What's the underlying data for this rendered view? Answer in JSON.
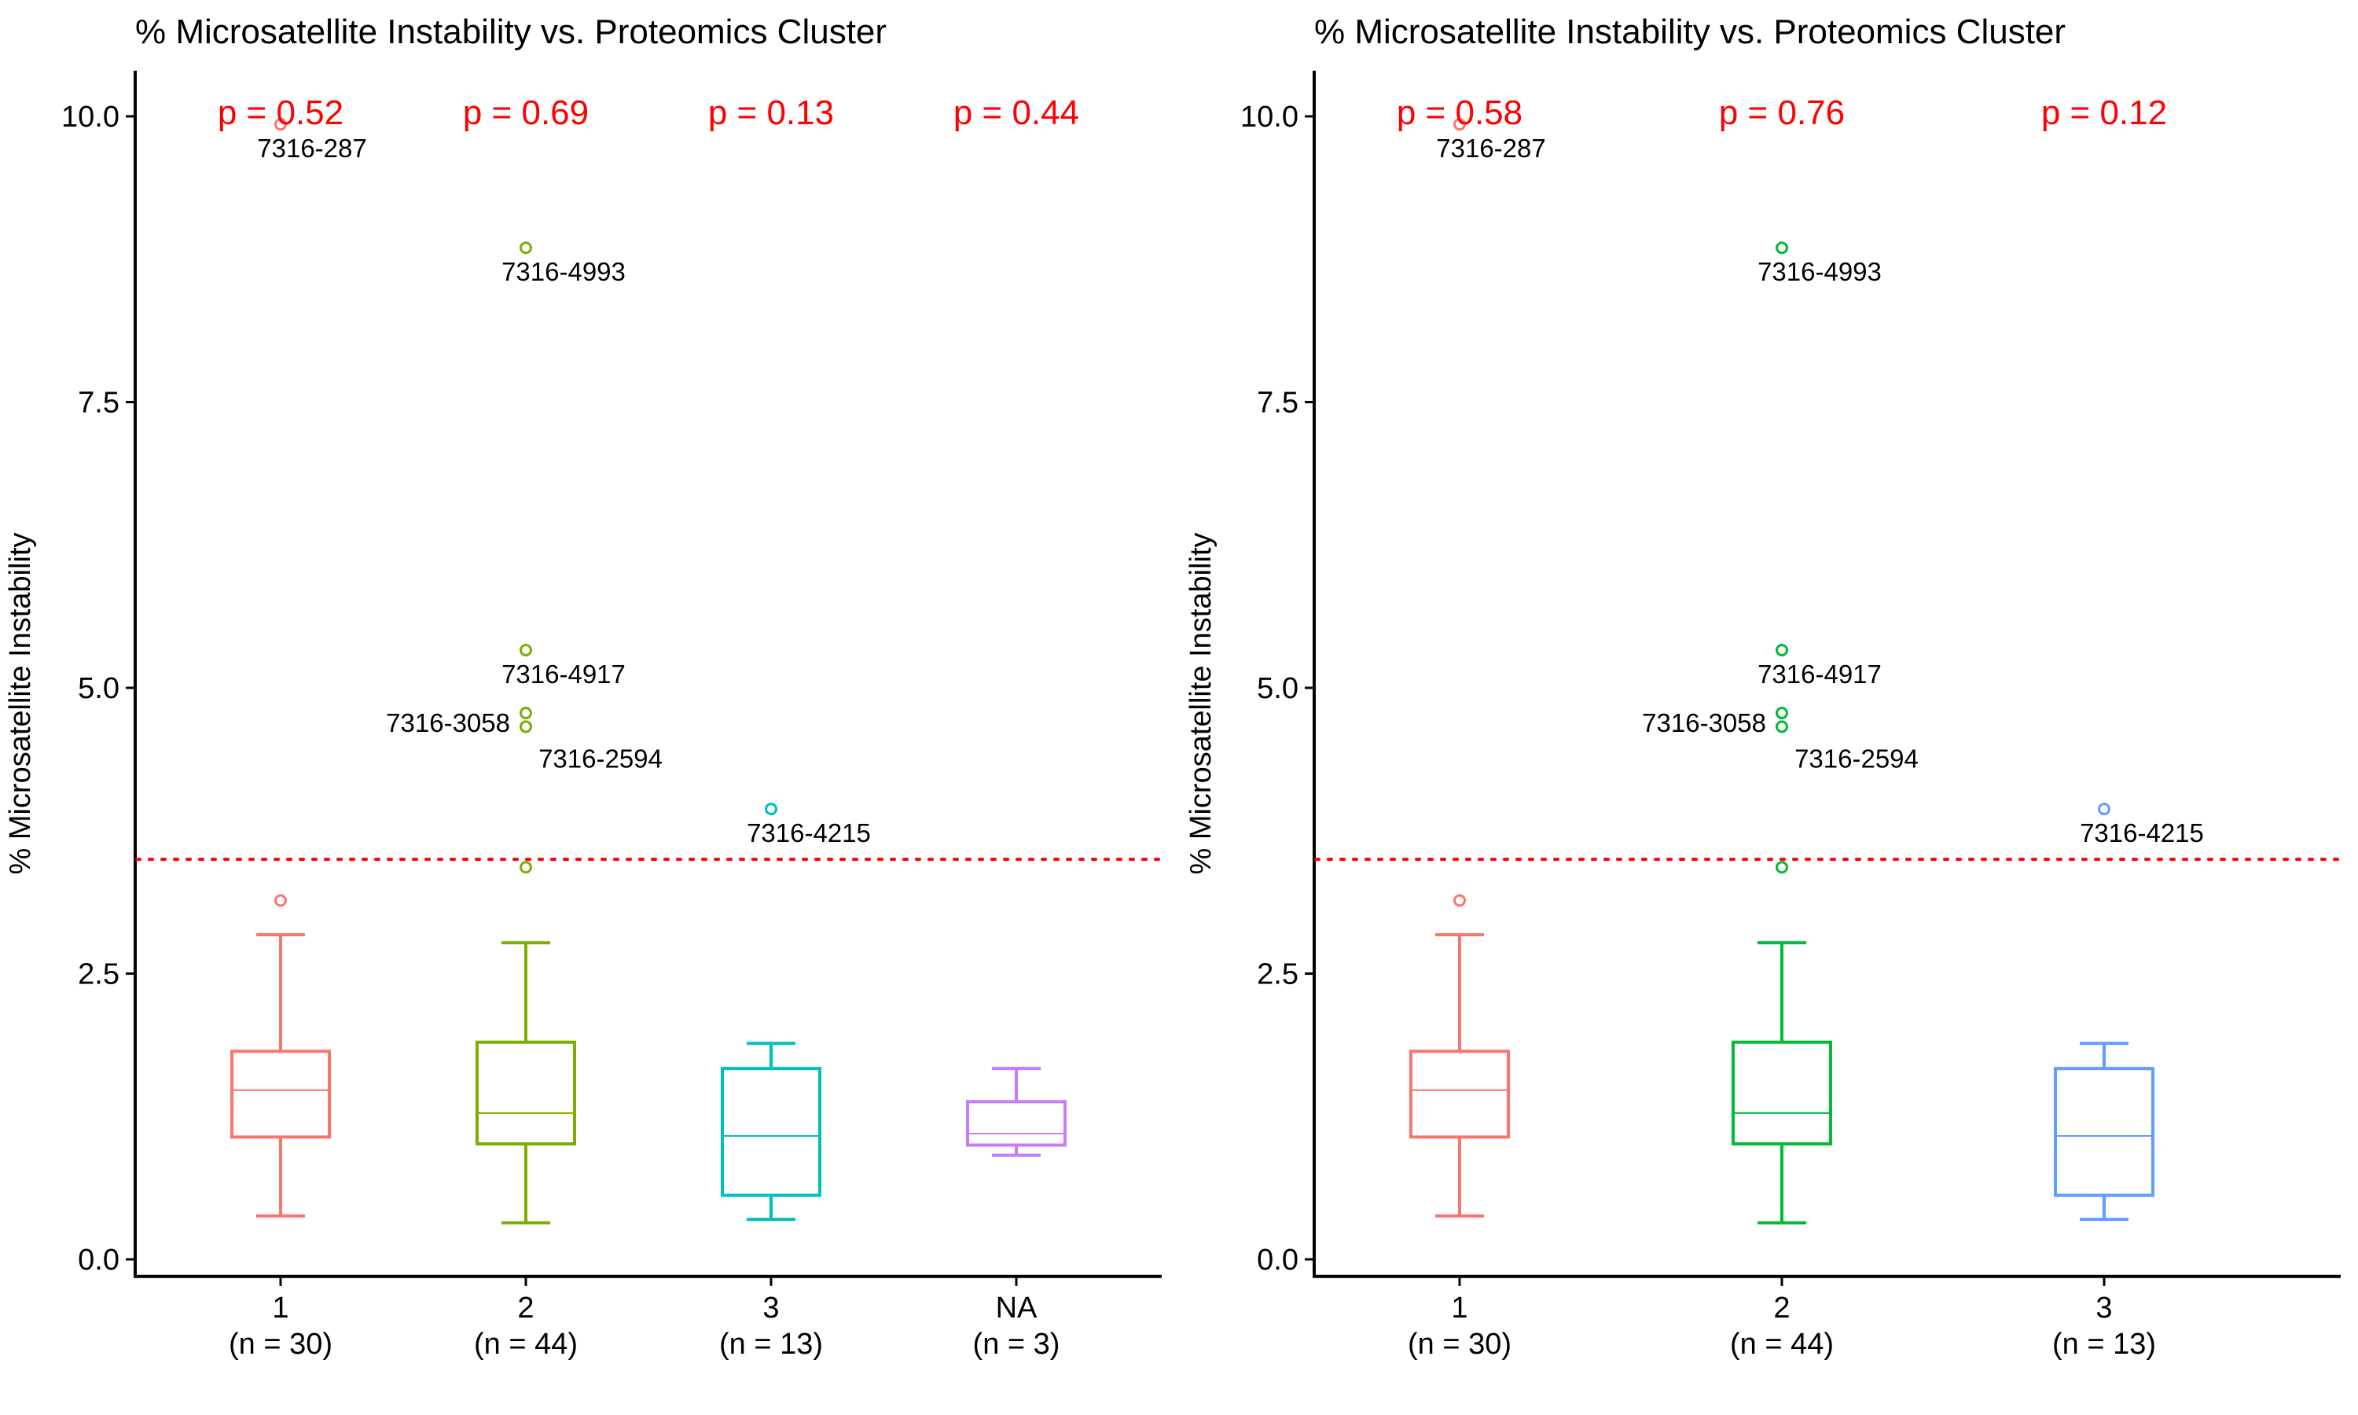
{
  "chart_data": [
    {
      "type": "box",
      "title": "% Microsatellite Instability vs. Proteomics Cluster",
      "ylabel": "% Microsatellite Instability",
      "ylim": [
        -0.15,
        10.4
      ],
      "yticks": [
        "0.0",
        "2.5",
        "5.0",
        "7.5",
        "10.0"
      ],
      "threshold": 3.5,
      "categories": [
        {
          "label": "1",
          "n_label": "(n = 30)",
          "color": "#F8766D",
          "p_label": "p = 0.52",
          "stats": {
            "min": 0.38,
            "q1": 1.07,
            "median": 1.48,
            "q3": 1.82,
            "max": 2.84
          },
          "outliers": [
            {
              "y": 3.14,
              "label": ""
            },
            {
              "y": 9.93,
              "label": "7316-287"
            }
          ]
        },
        {
          "label": "2",
          "n_label": "(n = 44)",
          "color": "#7CAE00",
          "p_label": "p = 0.69",
          "stats": {
            "min": 0.32,
            "q1": 1.01,
            "median": 1.28,
            "q3": 1.9,
            "max": 2.77
          },
          "outliers": [
            {
              "y": 3.43,
              "label": ""
            },
            {
              "y": 4.66,
              "label": "7316-2594"
            },
            {
              "y": 4.78,
              "label": "7316-3058"
            },
            {
              "y": 5.33,
              "label": "7316-4917"
            },
            {
              "y": 8.85,
              "label": "7316-4993"
            }
          ]
        },
        {
          "label": "3",
          "n_label": "(n = 13)",
          "color": "#00BFC4",
          "p_label": "p = 0.13",
          "stats": {
            "min": 0.35,
            "q1": 0.56,
            "median": 1.08,
            "q3": 1.67,
            "max": 1.89
          },
          "outliers": [
            {
              "y": 3.94,
              "label": "7316-4215"
            }
          ]
        },
        {
          "label": "NA",
          "n_label": "(n = 3)",
          "color": "#C77CFF",
          "p_label": "p = 0.44",
          "stats": {
            "min": 0.91,
            "q1": 1.0,
            "median": 1.1,
            "q3": 1.38,
            "max": 1.67
          },
          "outliers": []
        }
      ]
    },
    {
      "type": "box",
      "title": "% Microsatellite Instability vs. Proteomics Cluster",
      "ylabel": "% Microsatellite Instability",
      "ylim": [
        -0.15,
        10.4
      ],
      "yticks": [
        "0.0",
        "2.5",
        "5.0",
        "7.5",
        "10.0"
      ],
      "threshold": 3.5,
      "categories": [
        {
          "label": "1",
          "n_label": "(n = 30)",
          "color": "#F8766D",
          "p_label": "p = 0.58",
          "stats": {
            "min": 0.38,
            "q1": 1.07,
            "median": 1.48,
            "q3": 1.82,
            "max": 2.84
          },
          "outliers": [
            {
              "y": 3.14,
              "label": ""
            },
            {
              "y": 9.93,
              "label": "7316-287"
            }
          ]
        },
        {
          "label": "2",
          "n_label": "(n = 44)",
          "color": "#00BA38",
          "p_label": "p = 0.76",
          "stats": {
            "min": 0.32,
            "q1": 1.01,
            "median": 1.28,
            "q3": 1.9,
            "max": 2.77
          },
          "outliers": [
            {
              "y": 3.43,
              "label": ""
            },
            {
              "y": 4.66,
              "label": "7316-2594"
            },
            {
              "y": 4.78,
              "label": "7316-3058"
            },
            {
              "y": 5.33,
              "label": "7316-4917"
            },
            {
              "y": 8.85,
              "label": "7316-4993"
            }
          ]
        },
        {
          "label": "3",
          "n_label": "(n = 13)",
          "color": "#619CFF",
          "p_label": "p = 0.12",
          "stats": {
            "min": 0.35,
            "q1": 0.56,
            "median": 1.08,
            "q3": 1.67,
            "max": 1.89
          },
          "outliers": [
            {
              "y": 3.94,
              "label": "7316-4215"
            }
          ]
        }
      ]
    }
  ]
}
